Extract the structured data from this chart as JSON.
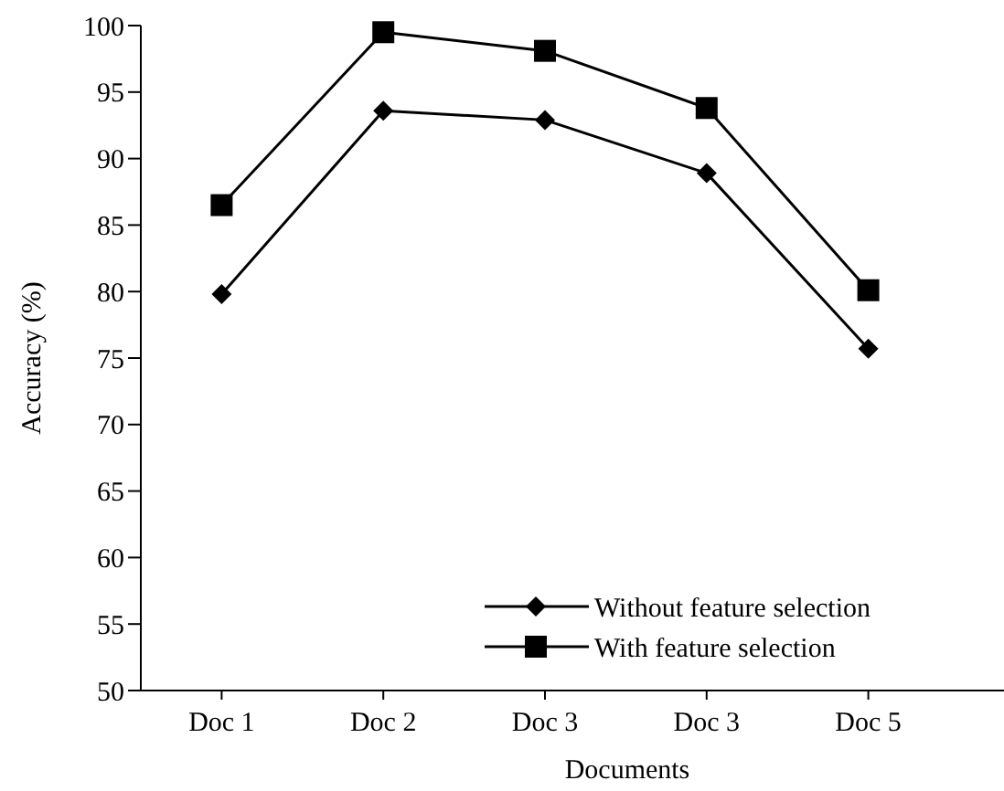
{
  "chart_data": {
    "type": "line",
    "xlabel": "Documents",
    "ylabel": "Accuracy (%)",
    "categories": [
      "Doc 1",
      "Doc 2",
      "Doc 3",
      "Doc 3",
      "Doc 5"
    ],
    "series": [
      {
        "name": "Without feature selection",
        "color": "#000000",
        "marker": "diamond",
        "values": [
          79.8,
          93.6,
          92.9,
          88.9,
          75.7
        ]
      },
      {
        "name": "With feature selection",
        "color": "#000000",
        "marker": "square",
        "values": [
          86.5,
          99.5,
          98.1,
          93.8,
          80.1
        ]
      }
    ],
    "ylim": [
      50,
      100
    ],
    "yticks": [
      50,
      55,
      60,
      65,
      70,
      75,
      80,
      85,
      90,
      95,
      100
    ],
    "grid": false,
    "legend": "bottom right",
    "line_style": "solid"
  }
}
